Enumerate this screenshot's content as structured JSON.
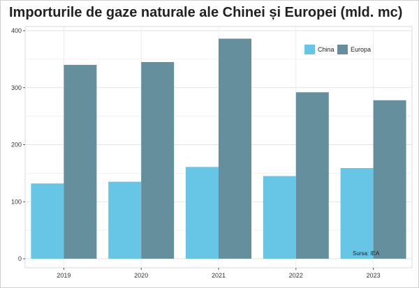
{
  "chart_data": {
    "type": "bar",
    "title": "Importurile de gaze naturale ale Chinei și Europei (mld. mc)",
    "categories": [
      "2019",
      "2020",
      "2021",
      "2022",
      "2023"
    ],
    "series": [
      {
        "name": "China",
        "values": [
          132,
          135,
          161,
          145,
          159
        ],
        "color": "#67c6e6"
      },
      {
        "name": "Europa",
        "values": [
          340,
          345,
          386,
          292,
          278
        ],
        "color": "#668f9e"
      }
    ],
    "ylim": [
      0,
      405
    ],
    "yticks": [
      "0",
      "100",
      "200",
      "300",
      "400"
    ],
    "grid": true,
    "legend_position": "top-right",
    "source": "Sursa: IEA"
  }
}
